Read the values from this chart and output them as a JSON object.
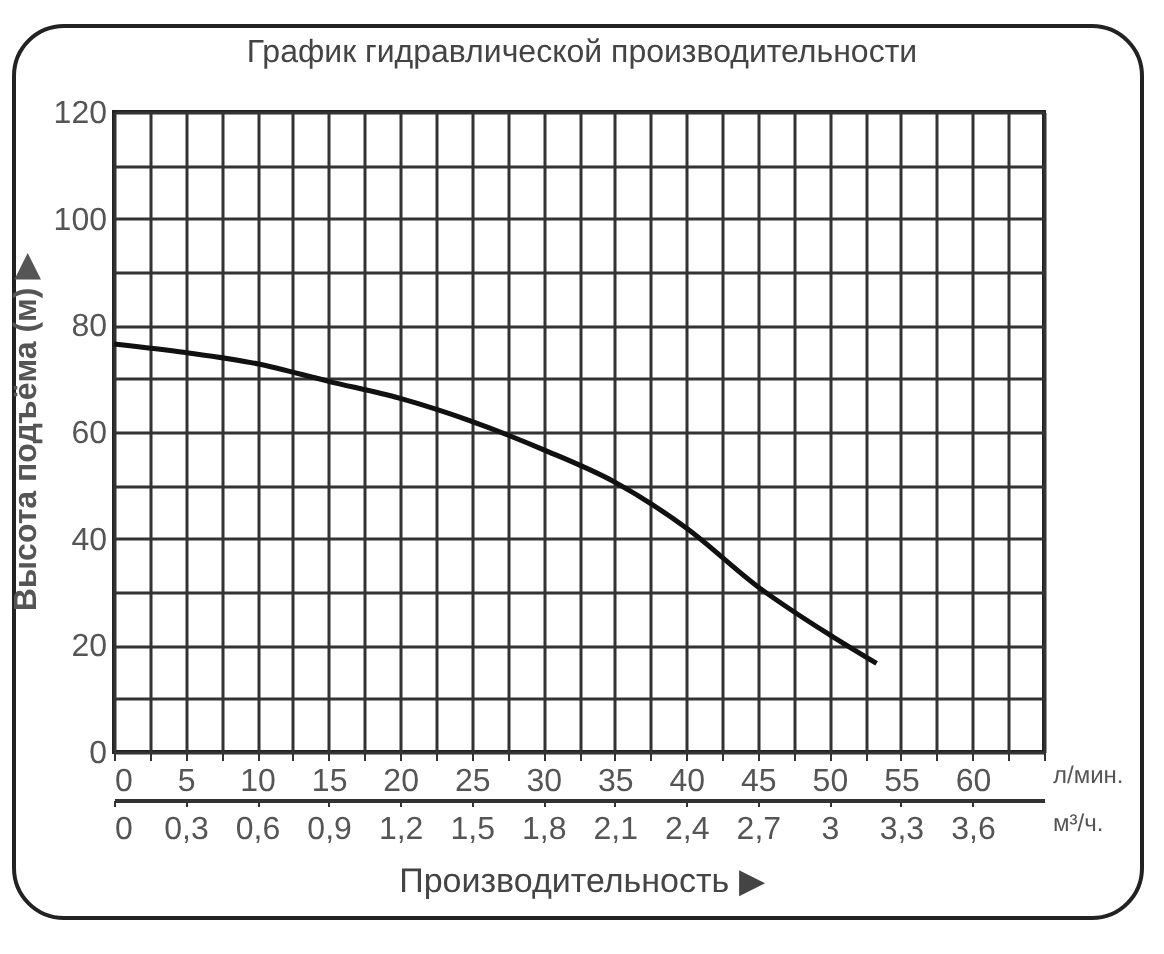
{
  "chart_data": {
    "type": "line",
    "title": "График гидравлической производительности",
    "xlabel": "л/мин.",
    "x2label": "м³/ч.",
    "ylabel": "Высота подъёма (м) ▶",
    "annotations": [
      "Производительность ▶"
    ],
    "x": [
      0,
      5,
      10,
      15,
      20,
      25,
      30,
      35,
      40,
      45,
      50,
      53.3
    ],
    "series": [
      {
        "color": "#111111",
        "values": [
          76.5,
          74.9,
          72.8,
          69.5,
          66.3,
          62,
          56.7,
          50.6,
          42,
          31,
          22,
          16.6
        ]
      }
    ],
    "xlim": [
      0,
      65
    ],
    "xticks": [
      0,
      {
        "value": 2.5,
        "label": null
      },
      5,
      {
        "value": 7.5,
        "label": null
      },
      10,
      {
        "value": 12.5,
        "label": null
      },
      15,
      {
        "value": 17.5,
        "label": null
      },
      20,
      {
        "value": 22.5,
        "label": null
      },
      25,
      {
        "value": 27.5,
        "label": null
      },
      30,
      {
        "value": 32.5,
        "label": null
      },
      35,
      {
        "value": 37.5,
        "label": null
      },
      40,
      {
        "value": 42.5,
        "label": null
      },
      45,
      {
        "value": 47.5,
        "label": null
      },
      50,
      {
        "value": 52.5,
        "label": null
      },
      55,
      {
        "value": 57.5,
        "label": null
      },
      60,
      {
        "value": 62.5,
        "label": null
      },
      {
        "value": 65,
        "label": null
      }
    ],
    "x2lim": [
      0,
      3.9
    ],
    "x2ticks": [
      {
        "value": 0,
        "label": "0"
      },
      {
        "value": 0.3,
        "label": "0,3"
      },
      {
        "value": 0.6,
        "label": "0,6"
      },
      {
        "value": 0.9,
        "label": "0,9"
      },
      {
        "value": 1.2,
        "label": "1,2"
      },
      {
        "value": 1.5,
        "label": "1,5"
      },
      {
        "value": 1.8,
        "label": "1,8"
      },
      {
        "value": 2.1,
        "label": "2,1"
      },
      {
        "value": 2.4,
        "label": "2,4"
      },
      {
        "value": 2.7,
        "label": "2,7"
      },
      {
        "value": 3,
        "label": "3"
      },
      {
        "value": 3.3,
        "label": "3,3"
      },
      {
        "value": 3.6,
        "label": "3,6"
      }
    ],
    "ylim": [
      0,
      120
    ],
    "yticks": [
      0,
      {
        "value": 10,
        "label": null
      },
      20,
      {
        "value": 30,
        "label": null
      },
      40,
      {
        "value": 50,
        "label": null
      },
      60,
      {
        "value": 70,
        "label": null
      },
      80,
      {
        "value": 90,
        "label": null
      },
      100,
      {
        "value": 110,
        "label": null
      },
      120
    ],
    "grid": true,
    "marker": "none",
    "line_style": "solid"
  }
}
